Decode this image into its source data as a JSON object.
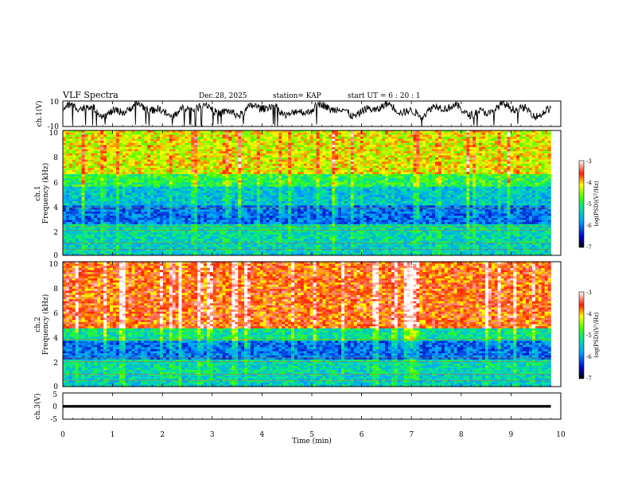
{
  "header": {
    "title": "VLF Spectra",
    "date": "Dec.28, 2025",
    "station": "station= KAP",
    "start_ut": "start  UT  =   6 : 20 : 1"
  },
  "chart_data": [
    {
      "type": "line",
      "panel": "ch1-waveform",
      "ylabel": "ch.1(V)",
      "ylim": [
        -10,
        10
      ],
      "yticks": [
        "10",
        "-10"
      ],
      "xlim": [
        0,
        10
      ],
      "description_series": "raw waveform voltage"
    },
    {
      "type": "heatmap",
      "panel": "ch1-spectrogram",
      "ylabel_line1": "ch.1",
      "ylabel_line2": "Frequency (kHz)",
      "ylim": [
        0,
        10
      ],
      "yticks": [
        "0",
        "2",
        "4",
        "6",
        "8",
        "10"
      ],
      "xlim": [
        0,
        10
      ],
      "colorbar": {
        "label": "log(PSD)(V²/Hz)",
        "ticks": [
          "-3",
          "-4",
          "-5",
          "-6",
          "-7"
        ],
        "range": [
          -7,
          -3
        ]
      },
      "bands": [
        {
          "from_khz": 0.0,
          "to_khz": 1.0,
          "level": -5.4
        },
        {
          "from_khz": 1.0,
          "to_khz": 2.5,
          "level": -5.3
        },
        {
          "from_khz": 2.5,
          "to_khz": 4.0,
          "level": -6.0
        },
        {
          "from_khz": 4.0,
          "to_khz": 5.5,
          "level": -5.5
        },
        {
          "from_khz": 5.5,
          "to_khz": 6.5,
          "level": -4.9
        },
        {
          "from_khz": 6.5,
          "to_khz": 10.0,
          "level": -4.2
        }
      ]
    },
    {
      "type": "heatmap",
      "panel": "ch2-spectrogram",
      "ylabel_line1": "ch.2",
      "ylabel_line2": "Frequency (kHz)",
      "ylim": [
        0,
        10
      ],
      "yticks": [
        "0",
        "2",
        "4",
        "6",
        "8",
        "10"
      ],
      "xlim": [
        0,
        10
      ],
      "colorbar": {
        "label": "log(PSD)(V²/Hz)",
        "ticks": [
          "-3",
          "-4",
          "-5",
          "-6",
          "-7"
        ],
        "range": [
          -7,
          -3
        ]
      },
      "bands": [
        {
          "from_khz": 0.0,
          "to_khz": 1.0,
          "level": -5.4
        },
        {
          "from_khz": 1.0,
          "to_khz": 2.2,
          "level": -5.3
        },
        {
          "from_khz": 2.2,
          "to_khz": 3.6,
          "level": -6.0
        },
        {
          "from_khz": 3.6,
          "to_khz": 4.6,
          "level": -5.2
        },
        {
          "from_khz": 4.6,
          "to_khz": 10.0,
          "level": -3.7
        }
      ]
    },
    {
      "type": "line",
      "panel": "ch3-waveform",
      "ylabel": "ch.3(V)",
      "ylim": [
        -5,
        5
      ],
      "yticks": [
        "5",
        "0",
        "-5"
      ],
      "xlim": [
        0,
        10
      ],
      "xlabel": "Time  (min)",
      "xticks": [
        "0",
        "1",
        "2",
        "3",
        "4",
        "5",
        "6",
        "7",
        "8",
        "9",
        "10"
      ],
      "data_end_min": 9.8,
      "level_band": [
        -0.6,
        0.4
      ]
    }
  ],
  "colors": {
    "axes": "#000000",
    "trace": "#000000",
    "background": "#ffffff"
  }
}
